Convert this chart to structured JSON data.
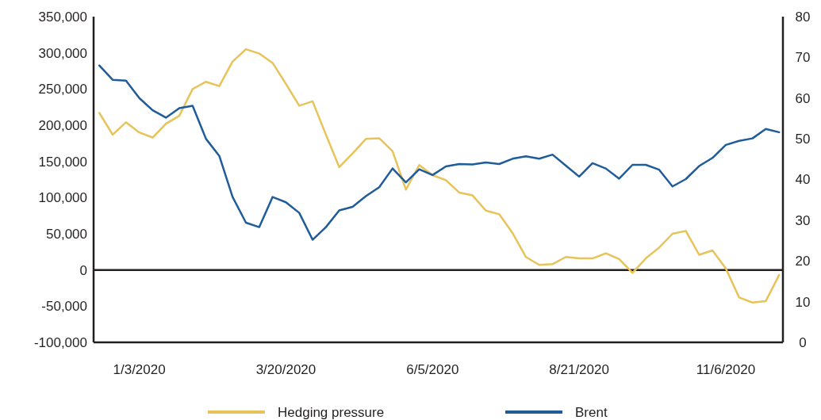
{
  "chart_data": {
    "type": "line",
    "x": [
      "2019-12-13",
      "2019-12-20",
      "2019-12-27",
      "2020-01-03",
      "2020-01-10",
      "2020-01-17",
      "2020-01-24",
      "2020-01-31",
      "2020-02-07",
      "2020-02-14",
      "2020-02-21",
      "2020-02-28",
      "2020-03-06",
      "2020-03-13",
      "2020-03-20",
      "2020-03-27",
      "2020-04-03",
      "2020-04-10",
      "2020-04-17",
      "2020-04-24",
      "2020-05-01",
      "2020-05-08",
      "2020-05-15",
      "2020-05-22",
      "2020-05-29",
      "2020-06-05",
      "2020-06-12",
      "2020-06-19",
      "2020-06-26",
      "2020-07-03",
      "2020-07-10",
      "2020-07-17",
      "2020-07-24",
      "2020-07-31",
      "2020-08-07",
      "2020-08-14",
      "2020-08-21",
      "2020-08-28",
      "2020-09-04",
      "2020-09-11",
      "2020-09-18",
      "2020-09-25",
      "2020-10-02",
      "2020-10-09",
      "2020-10-16",
      "2020-10-23",
      "2020-10-30",
      "2020-11-06",
      "2020-11-13",
      "2020-11-20",
      "2020-11-27",
      "2020-12-04"
    ],
    "series": [
      {
        "name": "Hedging pressure",
        "color": "#e8c35a",
        "values": [
          217000,
          187000,
          204000,
          190000,
          183000,
          202000,
          213000,
          250000,
          260000,
          254000,
          288000,
          305000,
          299000,
          286000,
          257000,
          227000,
          233000,
          187000,
          142000,
          161000,
          181000,
          182000,
          164000,
          111000,
          145000,
          131000,
          124000,
          107000,
          103000,
          82000,
          77000,
          51000,
          18000,
          7000,
          8000,
          18000,
          16000,
          16000,
          23000,
          15000,
          -4000,
          16000,
          31000,
          50000,
          54000,
          21000,
          27000,
          2000,
          -38000,
          -45000,
          -43000,
          -7000
        ]
      },
      {
        "name": "Brent",
        "color": "#1f5c99",
        "axis": "y2",
        "values": [
          68.0,
          64.5,
          64.3,
          60.0,
          57.0,
          55.2,
          57.5,
          58.1,
          50.0,
          45.8,
          35.7,
          29.4,
          28.3,
          35.7,
          34.4,
          31.8,
          25.2,
          28.3,
          32.4,
          33.3,
          35.9,
          38.1,
          42.7,
          39.3,
          42.5,
          41.1,
          43.2,
          43.8,
          43.7,
          44.2,
          43.8,
          45.1,
          45.7,
          45.1,
          46.1,
          43.4,
          40.7,
          44.0,
          42.7,
          40.2,
          43.6,
          43.6,
          42.4,
          38.3,
          40.1,
          43.3,
          45.3,
          48.5,
          49.5,
          50.1,
          52.4,
          51.6
        ]
      }
    ],
    "xlim": [
      "2019-12-10",
      "2020-12-06"
    ],
    "xticks": [
      {
        "value": "2020-01-03",
        "label": "1/3/2020"
      },
      {
        "value": "2020-03-20",
        "label": "3/20/2020"
      },
      {
        "value": "2020-06-05",
        "label": "6/5/2020"
      },
      {
        "value": "2020-08-21",
        "label": "8/21/2020"
      },
      {
        "value": "2020-11-06",
        "label": "11/6/2020"
      }
    ],
    "ylim": [
      -100000,
      350000
    ],
    "yticks": [
      {
        "value": -100000,
        "label": "-100,000"
      },
      {
        "value": -50000,
        "label": "-50,000"
      },
      {
        "value": 0,
        "label": "0"
      },
      {
        "value": 50000,
        "label": "50,000"
      },
      {
        "value": 100000,
        "label": "100,000"
      },
      {
        "value": 150000,
        "label": "150,000"
      },
      {
        "value": 200000,
        "label": "200,000"
      },
      {
        "value": 250000,
        "label": "250,000"
      },
      {
        "value": 300000,
        "label": "300,000"
      },
      {
        "value": 350000,
        "label": "350,000"
      }
    ],
    "y2lim": [
      0,
      80
    ],
    "y2ticks": [
      0,
      10,
      20,
      30,
      40,
      50,
      60,
      70,
      80
    ],
    "ref_lines": [
      {
        "axis": "y",
        "value": 0,
        "color": "#231f20"
      }
    ],
    "legend": "bottom",
    "grid": false,
    "marker": "none",
    "line_style": "solid"
  }
}
